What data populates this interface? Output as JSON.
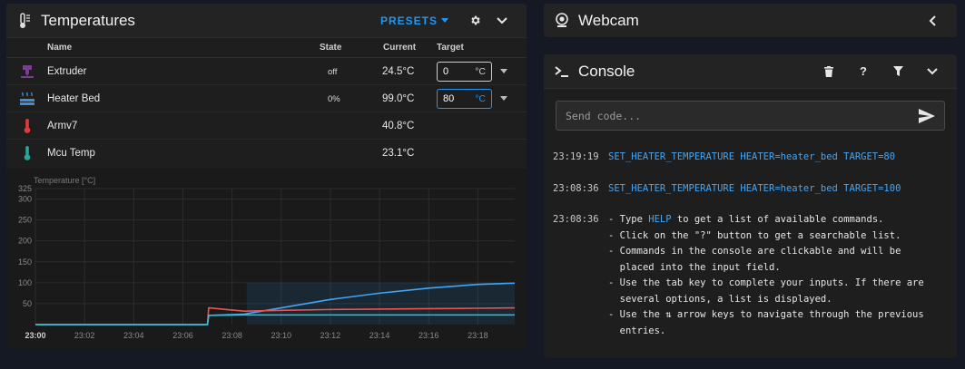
{
  "temperatures": {
    "title": "Temperatures",
    "presets_label": "PRESETS",
    "columns": {
      "name": "Name",
      "state": "State",
      "current": "Current",
      "target": "Target"
    },
    "rows": [
      {
        "icon": "extruder-icon",
        "name": "Extruder",
        "state": "off",
        "current": "24.5°C",
        "target": "0",
        "unit": "°C",
        "color": "#7b3f8a"
      },
      {
        "icon": "heater-bed-icon",
        "name": "Heater Bed",
        "state": "0%",
        "current": "99.0°C",
        "target": "80",
        "unit": "°C",
        "color": "#3f8fd6"
      },
      {
        "icon": "thermometer-icon",
        "name": "Armv7",
        "state": "",
        "current": "40.8°C",
        "color": "#e53935"
      },
      {
        "icon": "thermometer-icon",
        "name": "Mcu Temp",
        "state": "",
        "current": "23.1°C",
        "color": "#26a69a"
      }
    ]
  },
  "chart_data": {
    "type": "line",
    "ylabel": "Temperature [°C]",
    "ylim": [
      0,
      325
    ],
    "yticks": [
      50,
      100,
      150,
      200,
      250,
      300,
      325
    ],
    "xticks": [
      "23:00",
      "23:02",
      "23:04",
      "23:06",
      "23:08",
      "23:10",
      "23:12",
      "23:14",
      "23:16",
      "23:18"
    ],
    "x_minutes": [
      0,
      7,
      7.05,
      8.5,
      10,
      12,
      14,
      16,
      18,
      19.5
    ],
    "series": [
      {
        "color": "#42a5f5",
        "values": [
          0,
          0,
          22,
          25,
          40,
          60,
          75,
          87,
          96,
          99
        ]
      },
      {
        "color": "#ef5350",
        "values": [
          0,
          0,
          40,
          32,
          34,
          36,
          37,
          38,
          39,
          40
        ]
      },
      {
        "color": "#26c6da",
        "values": [
          0,
          0,
          22,
          23,
          23,
          23,
          23,
          23,
          23,
          23
        ]
      }
    ],
    "target_band": {
      "color": "#2196f3",
      "from_minute": 8.6,
      "to_minute": 19.5,
      "value": 100
    },
    "grid": true
  },
  "webcam": {
    "title": "Webcam"
  },
  "console": {
    "title": "Console",
    "placeholder": "Send code...",
    "entries": [
      {
        "time": "23:19:19",
        "command": "SET_HEATER_TEMPERATURE HEATER=heater_bed TARGET=80"
      },
      {
        "time": "23:08:36",
        "command": "SET_HEATER_TEMPERATURE HEATER=heater_bed TARGET=100"
      },
      {
        "time": "23:08:36",
        "help_prefix": "- Type ",
        "help_word": "HELP",
        "help_suffix": " to get a list of available commands.",
        "lines": [
          "- Click on the \"?\" button to get a searchable list.",
          "- Commands in the console are clickable and will be\n  placed into the input field.",
          "- Use the tab key to complete your inputs. If there are\n  several options, a list is displayed.",
          "- Use the ⇅ arrow keys to navigate through the previous\n  entries."
        ]
      }
    ]
  }
}
